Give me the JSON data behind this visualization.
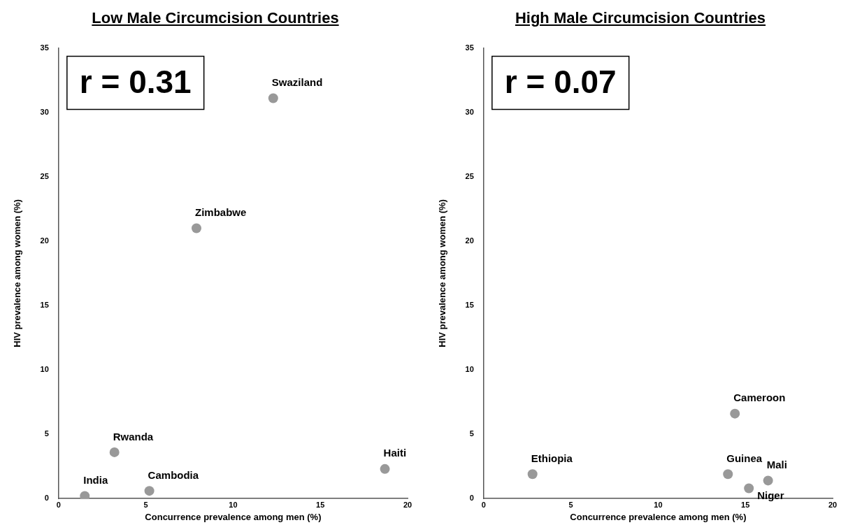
{
  "chart_data": [
    {
      "type": "scatter",
      "title": "Low Male Circumcision Countries",
      "xlabel": "Concurrence prevalence among men (%)",
      "ylabel": "HIV prevalence among women (%)",
      "xlim": [
        0,
        20
      ],
      "xticks": [
        0,
        5,
        10,
        15,
        20
      ],
      "ylim": [
        0,
        35
      ],
      "yticks": [
        0,
        5,
        10,
        15,
        20,
        25,
        30,
        35
      ],
      "grid": false,
      "legend": false,
      "marker": "circle",
      "series": [
        {
          "color": "#999999",
          "x": [
            12.3,
            7.9,
            3.2,
            1.5,
            5.2,
            18.7
          ],
          "values": [
            31.1,
            21.0,
            3.6,
            0.2,
            0.6,
            2.3
          ]
        }
      ],
      "annotations": [
        "r = 0.31",
        {
          "text": "Swaziland",
          "x": 12.3,
          "y": 31.1
        },
        {
          "text": "Zimbabwe",
          "x": 7.9,
          "y": 21.0
        },
        {
          "text": "Rwanda",
          "x": 3.2,
          "y": 3.6
        },
        {
          "text": "India",
          "x": 1.5,
          "y": 0.2
        },
        {
          "text": "Cambodia",
          "x": 5.2,
          "y": 0.6
        },
        {
          "text": "Haiti",
          "x": 18.7,
          "y": 2.3
        }
      ]
    },
    {
      "type": "scatter",
      "title": "High Male Circumcision Countries",
      "xlabel": "Concurrence prevalence among men (%)",
      "ylabel": "HIV prevalence among women (%)",
      "xlim": [
        0,
        20
      ],
      "xticks": [
        0,
        5,
        10,
        15,
        20
      ],
      "ylim": [
        0,
        35
      ],
      "yticks": [
        0,
        5,
        10,
        15,
        20,
        25,
        30,
        35
      ],
      "grid": false,
      "legend": false,
      "marker": "circle",
      "series": [
        {
          "color": "#999999",
          "x": [
            14.4,
            2.8,
            14.0,
            16.3,
            15.2
          ],
          "values": [
            6.6,
            1.9,
            1.9,
            1.4,
            0.8
          ]
        }
      ],
      "annotations": [
        "r = 0.07",
        {
          "text": "Cameroon",
          "x": 14.4,
          "y": 6.6
        },
        {
          "text": "Ethiopia",
          "x": 2.8,
          "y": 1.9
        },
        {
          "text": "Guinea",
          "x": 14.0,
          "y": 1.9
        },
        {
          "text": "Mali",
          "x": 16.3,
          "y": 1.4
        },
        {
          "text": "Niger",
          "x": 15.2,
          "y": 0.8
        }
      ]
    }
  ]
}
